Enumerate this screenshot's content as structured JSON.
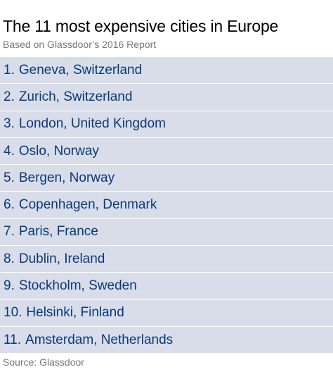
{
  "chart_data": {
    "type": "table",
    "title": "The 11 most expensive cities in Europe",
    "subtitle": "Based on Glassdoor’s 2016 Report",
    "rows": [
      {
        "rank": "1.",
        "city": "Geneva, Switzerland"
      },
      {
        "rank": "2.",
        "city": "Zurich, Switzerland"
      },
      {
        "rank": "3.",
        "city": "London, United Kingdom"
      },
      {
        "rank": "4.",
        "city": "Oslo, Norway"
      },
      {
        "rank": "5.",
        "city": "Bergen, Norway"
      },
      {
        "rank": "6.",
        "city": "Copenhagen, Denmark"
      },
      {
        "rank": "7.",
        "city": "Paris, France"
      },
      {
        "rank": "8.",
        "city": "Dublin, Ireland"
      },
      {
        "rank": "9.",
        "city": "Stockholm, Sweden"
      },
      {
        "rank": "10.",
        "city": "Helsinki, Finland"
      },
      {
        "rank": "11.",
        "city": "Amsterdam, Netherlands"
      }
    ],
    "source": "Source: Glassdoor"
  },
  "colors": {
    "row_background": "#d8dde9",
    "row_text": "#0a3a78",
    "title": "#000000",
    "muted_text": "#777777"
  }
}
